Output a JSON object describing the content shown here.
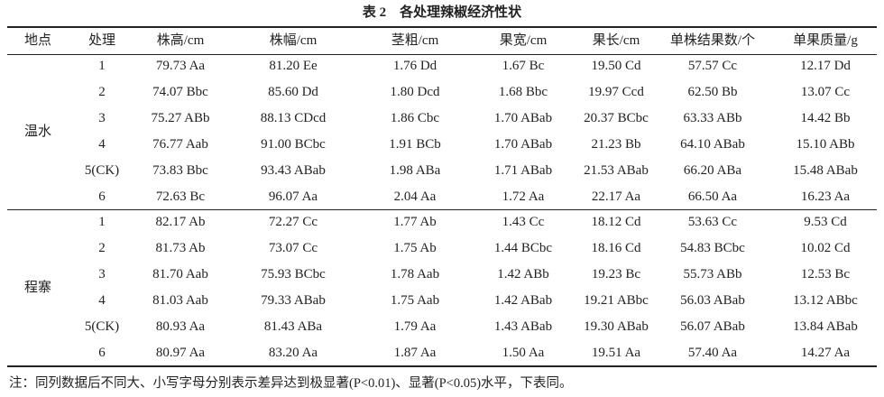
{
  "title": "表 2　各处理辣椒经济性状",
  "table": {
    "header": [
      "地点",
      "处理",
      "株高/cm",
      "株幅/cm",
      "茎粗/cm",
      "果宽/cm",
      "果长/cm",
      "单株结果数/个",
      "单果质量/g"
    ],
    "groups": [
      {
        "location": "温水",
        "rows": [
          [
            "1",
            "79.73 Aa",
            "81.20 Ee",
            "1.76 Dd",
            "1.67 Bc",
            "19.50 Cd",
            "57.57 Cc",
            "12.17 Dd"
          ],
          [
            "2",
            "74.07 Bbc",
            "85.60 Dd",
            "1.80 Dcd",
            "1.68 Bbc",
            "19.97 Ccd",
            "62.50 Bb",
            "13.07 Cc"
          ],
          [
            "3",
            "75.27 ABb",
            "88.13 CDcd",
            "1.86 Cbc",
            "1.70 ABab",
            "20.37 BCbc",
            "63.33 ABb",
            "14.42 Bb"
          ],
          [
            "4",
            "76.77 Aab",
            "91.00 BCbc",
            "1.91 BCb",
            "1.70 ABab",
            "21.23 Bb",
            "64.10 ABab",
            "15.10 ABb"
          ],
          [
            "5(CK)",
            "73.83 Bbc",
            "93.43 ABab",
            "1.98 ABa",
            "1.71 ABab",
            "21.53 ABab",
            "66.20 ABa",
            "15.48 ABab"
          ],
          [
            "6",
            "72.63 Bc",
            "96.07 Aa",
            "2.04 Aa",
            "1.72 Aa",
            "22.17 Aa",
            "66.50 Aa",
            "16.23 Aa"
          ]
        ]
      },
      {
        "location": "程寨",
        "rows": [
          [
            "1",
            "82.17 Ab",
            "72.27 Cc",
            "1.77 Ab",
            "1.43 Cc",
            "18.12 Cd",
            "53.63 Cc",
            "9.53 Cd"
          ],
          [
            "2",
            "81.73 Ab",
            "73.07 Cc",
            "1.75 Ab",
            "1.44 BCbc",
            "18.16 Cd",
            "54.83 BCbc",
            "10.02 Cd"
          ],
          [
            "3",
            "81.70 Aab",
            "75.93 BCbc",
            "1.78 Aab",
            "1.42 ABb",
            "19.23 Bc",
            "55.73 ABb",
            "12.53 Bc"
          ],
          [
            "4",
            "81.03 Aab",
            "79.33 ABab",
            "1.75 Aab",
            "1.42 ABab",
            "19.21 ABbc",
            "56.03 ABab",
            "13.12 ABbc"
          ],
          [
            "5(CK)",
            "80.93 Aa",
            "81.43 ABa",
            "1.79 Aa",
            "1.43 ABab",
            "19.30 ABab",
            "56.07 ABab",
            "13.84 ABab"
          ],
          [
            "6",
            "80.97 Aa",
            "83.20 Aa",
            "1.87 Aa",
            "1.50 Aa",
            "19.51 Aa",
            "57.40 Aa",
            "14.27 Aa"
          ]
        ]
      }
    ]
  },
  "note": "注：同列数据后不同大、小写字母分别表示差异达到极显著(P<0.01)、显著(P<0.05)水平，下表同。"
}
